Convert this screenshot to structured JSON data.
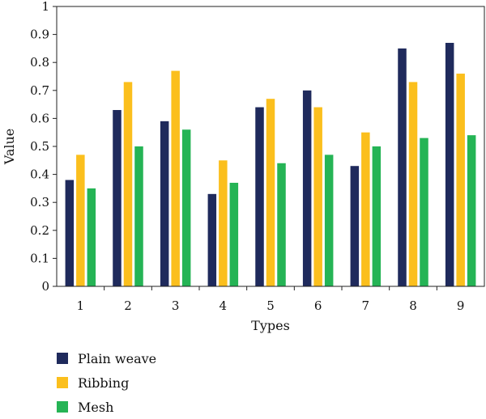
{
  "chart_data": {
    "type": "bar",
    "categories": [
      "1",
      "2",
      "3",
      "4",
      "5",
      "6",
      "7",
      "8",
      "9"
    ],
    "series": [
      {
        "name": "Plain weave",
        "color": "#1f2a5c",
        "values": [
          0.38,
          0.63,
          0.59,
          0.33,
          0.64,
          0.7,
          0.43,
          0.85,
          0.87
        ]
      },
      {
        "name": "Ribbing",
        "color": "#fbbf1d",
        "values": [
          0.47,
          0.73,
          0.77,
          0.45,
          0.67,
          0.64,
          0.55,
          0.73,
          0.76
        ]
      },
      {
        "name": "Mesh",
        "color": "#25b455",
        "values": [
          0.35,
          0.5,
          0.56,
          0.37,
          0.44,
          0.47,
          0.5,
          0.53,
          0.54
        ]
      }
    ],
    "xlabel": "Types",
    "ylabel": "Value",
    "ylim": [
      0,
      1
    ],
    "yticks": [
      "0",
      "0.1",
      "0.2",
      "0.3",
      "0.4",
      "0.5",
      "0.6",
      "0.7",
      "0.8",
      "0.9",
      "1"
    ],
    "legend_position": "bottom-left",
    "grid": false
  }
}
